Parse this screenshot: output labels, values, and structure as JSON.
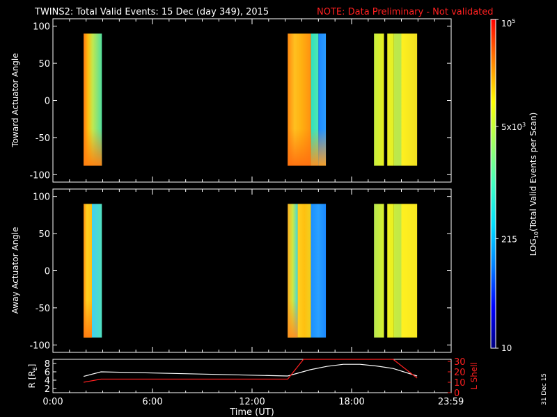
{
  "title": "TWINS2: Total Valid Events: 15 Dec (day 349), 2015",
  "note": "NOTE: Data Preliminary - Not validated",
  "date_stamp": "31 Dec 15",
  "colors": {
    "note": "#ff2020",
    "r_line": "#ffffff",
    "lshell_line": "#ff2020"
  },
  "chart_data": [
    {
      "type": "heatmap",
      "panel": "toward",
      "ylabel": "Toward Actuator Angle",
      "ylim": [
        -110,
        110
      ],
      "yticks": [
        -100,
        -50,
        0,
        50,
        100
      ],
      "xlim": [
        0,
        24
      ],
      "data_ylim": [
        -88,
        90
      ],
      "blocks": [
        {
          "x0": 1.85,
          "x1": 2.95,
          "stops": [
            [
              0.0,
              "#ff7a10"
            ],
            [
              0.25,
              "#ffc010"
            ],
            [
              0.5,
              "#c0e850"
            ],
            [
              1.0,
              "#50e0a0"
            ]
          ],
          "bottom_color": "#ff8010"
        },
        {
          "x0": 14.15,
          "x1": 15.55,
          "stops": [
            [
              0.0,
              "#ff8810"
            ],
            [
              0.3,
              "#ffc020"
            ],
            [
              0.6,
              "#ffb010"
            ],
            [
              1.0,
              "#ff9010"
            ]
          ],
          "bottom_color": "#ff7010"
        },
        {
          "x0": 15.55,
          "x1": 16.0,
          "stops": [
            [
              0.0,
              "#30e0c0"
            ],
            [
              1.0,
              "#50e8b0"
            ]
          ],
          "bottom_color": "#ff9020"
        },
        {
          "x0": 16.0,
          "x1": 16.45,
          "stops": [
            [
              0.0,
              "#1e88ff"
            ],
            [
              1.0,
              "#2a9cff"
            ]
          ],
          "bottom_color": "#ffa020"
        },
        {
          "x0": 19.35,
          "x1": 19.95,
          "stops": [
            [
              0.0,
              "#c8f040"
            ],
            [
              1.0,
              "#e8f020"
            ]
          ]
        },
        {
          "x0": 20.15,
          "x1": 20.55,
          "stops": [
            [
              0.0,
              "#f0f020"
            ],
            [
              1.0,
              "#e0f028"
            ]
          ]
        },
        {
          "x0": 20.55,
          "x1": 21.0,
          "stops": [
            [
              0.0,
              "#c0e848"
            ],
            [
              1.0,
              "#b8e850"
            ]
          ]
        },
        {
          "x0": 21.0,
          "x1": 21.95,
          "stops": [
            [
              0.0,
              "#fff020"
            ],
            [
              1.0,
              "#f0e020"
            ]
          ]
        }
      ]
    },
    {
      "type": "heatmap",
      "panel": "away",
      "ylabel": "Away Actuator Angle",
      "ylim": [
        -110,
        110
      ],
      "yticks": [
        -100,
        -50,
        0,
        50,
        100
      ],
      "xlim": [
        0,
        24
      ],
      "data_ylim": [
        -90,
        90
      ],
      "blocks": [
        {
          "x0": 1.85,
          "x1": 2.35,
          "stops": [
            [
              0.0,
              "#ff9010"
            ],
            [
              0.4,
              "#ffd020"
            ],
            [
              1.0,
              "#ffc010"
            ]
          ],
          "bottom_color": "#ff7a10"
        },
        {
          "x0": 2.35,
          "x1": 2.95,
          "stops": [
            [
              0.0,
              "#40d0f0"
            ],
            [
              1.0,
              "#50e0c0"
            ]
          ]
        },
        {
          "x0": 14.15,
          "x1": 14.75,
          "stops": [
            [
              0.0,
              "#ffb020"
            ],
            [
              0.5,
              "#d0e840"
            ],
            [
              1.0,
              "#40d8e0"
            ]
          ],
          "bottom_color": "#ff9020"
        },
        {
          "x0": 14.75,
          "x1": 15.55,
          "stops": [
            [
              0.0,
              "#ffd020"
            ],
            [
              0.5,
              "#ffc010"
            ],
            [
              1.0,
              "#f0d020"
            ]
          ]
        },
        {
          "x0": 15.55,
          "x1": 16.45,
          "stops": [
            [
              0.0,
              "#1a90ff"
            ],
            [
              0.5,
              "#2aa0ff"
            ],
            [
              1.0,
              "#1a88ff"
            ]
          ]
        },
        {
          "x0": 19.35,
          "x1": 19.95,
          "stops": [
            [
              0.0,
              "#b8e850"
            ],
            [
              1.0,
              "#d8f030"
            ]
          ]
        },
        {
          "x0": 20.15,
          "x1": 20.55,
          "stops": [
            [
              0.0,
              "#f0f020"
            ],
            [
              1.0,
              "#e8f020"
            ]
          ]
        },
        {
          "x0": 20.55,
          "x1": 21.0,
          "stops": [
            [
              0.0,
              "#c8ec40"
            ],
            [
              1.0,
              "#c0e848"
            ]
          ]
        },
        {
          "x0": 21.0,
          "x1": 21.95,
          "stops": [
            [
              0.0,
              "#fff020"
            ],
            [
              1.0,
              "#f8e820"
            ]
          ]
        }
      ]
    },
    {
      "type": "line",
      "panel": "orbit",
      "xlabel": "Time (UT)",
      "xticks": [
        "0:00",
        "6:00",
        "12:00",
        "18:00",
        "23:59"
      ],
      "xtick_hours": [
        0,
        6,
        12,
        18,
        23.983
      ],
      "xlim": [
        0,
        24
      ],
      "ylabel_left": "R [R",
      "ylabel_left_sub": "E",
      "ylabel_left_close": "]",
      "ylim_left": [
        1,
        9
      ],
      "yticks_left": [
        "8",
        "6",
        "4",
        "2"
      ],
      "ylabel_right": "L Shell",
      "ylim_right": [
        0,
        32
      ],
      "yticks_right": [
        "30",
        "20",
        "10",
        "0"
      ],
      "series": [
        {
          "axis": "left",
          "color": "#ffffff",
          "x": [
            1.85,
            2.9,
            14.15,
            15.5,
            16.5,
            17.5,
            18.5,
            19.5,
            20.5,
            21.95
          ],
          "y": [
            4.9,
            6.0,
            5.0,
            6.5,
            7.3,
            7.8,
            7.8,
            7.4,
            6.8,
            5.0
          ]
        },
        {
          "axis": "right",
          "color": "#ff2020",
          "x": [
            1.85,
            2.9,
            14.15,
            15.1,
            20.5,
            21.95
          ],
          "y": [
            10,
            13,
            13,
            32,
            32,
            14
          ]
        }
      ]
    },
    {
      "type": "colorbar",
      "scale": "log",
      "label": "LOG",
      "label_sub": "10",
      "label_rest": "(Total Valid Events per Scan)",
      "tick_values": [
        100000,
        5000,
        215,
        10
      ],
      "tick_labels": [
        {
          "base": "10",
          "exp": "5"
        },
        {
          "base": "5x10",
          "exp": "3"
        },
        {
          "base": "215",
          "exp": ""
        },
        {
          "base": "10",
          "exp": ""
        }
      ],
      "range": [
        10,
        100000
      ],
      "colors_bottom_to_top": [
        "#000080",
        "#0000ff",
        "#0080ff",
        "#00e0ff",
        "#40ffc0",
        "#a0ff60",
        "#ffff00",
        "#ff8000",
        "#ff0000"
      ]
    }
  ]
}
